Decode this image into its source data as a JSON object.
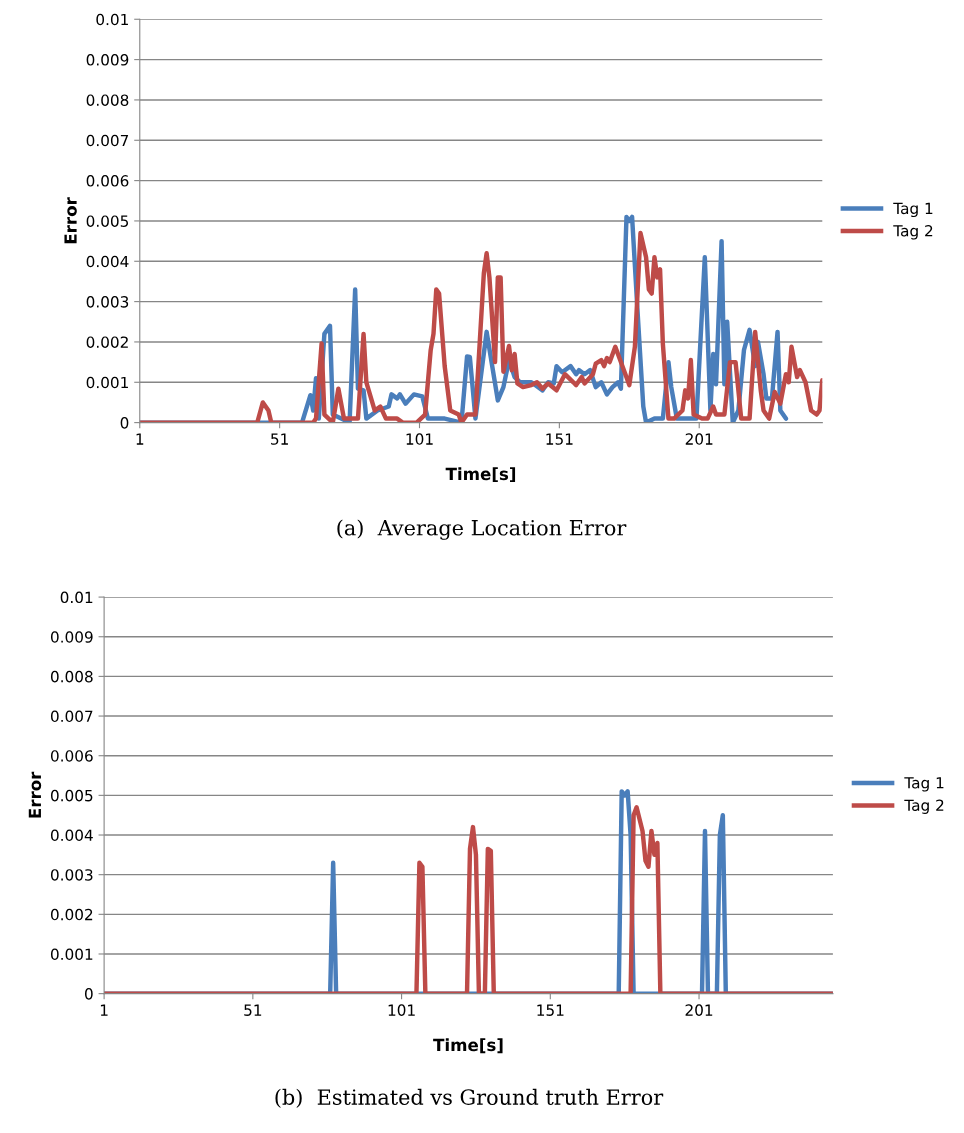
{
  "chart_data": [
    {
      "type": "line",
      "xlabel": "Time[s]",
      "ylabel": "Error",
      "annotations": [
        "(a)  Average Location Error"
      ],
      "xlim": [
        1,
        245
      ],
      "xticks": [
        1,
        51,
        101,
        151,
        201
      ],
      "ylim": [
        0,
        0.01
      ],
      "yticks": [
        0,
        0.001,
        0.002,
        0.003,
        0.004,
        0.005,
        0.006,
        0.007,
        0.008,
        0.009,
        0.01
      ],
      "grid": "y",
      "legend": "right",
      "marker": "none",
      "line_style": "solid",
      "series": [
        {
          "name": "Tag 1",
          "color": "#4a7ebb",
          "x": [
            1,
            59,
            62,
            63,
            64,
            65,
            67,
            69,
            70,
            73,
            76,
            78,
            79,
            81,
            82,
            86,
            90,
            91,
            93,
            94,
            96,
            99,
            102,
            104,
            110,
            116,
            118,
            119,
            121,
            125,
            129,
            131,
            133,
            135,
            137,
            141,
            145,
            147,
            149,
            150,
            152,
            155,
            157,
            158,
            160,
            162,
            164,
            166,
            168,
            170,
            172,
            173,
            175,
            176,
            177,
            179,
            181,
            182,
            185,
            188,
            190,
            191,
            193,
            200,
            203,
            205,
            206,
            207,
            209,
            210,
            211,
            213,
            215,
            217,
            219,
            221,
            222,
            224,
            225,
            227,
            229,
            230,
            232
          ],
          "values": [
            0,
            0,
            0.00068,
            0.0003,
            0.0011,
            0.0001,
            0.0022,
            0.0024,
            0.0002,
            0.0001,
            0,
            0.0033,
            0.00084,
            0.0008,
            0.0001,
            0.0003,
            0.0004,
            0.0007,
            0.0006,
            0.0007,
            0.00047,
            0.0007,
            0.00065,
            0.0001,
            0.0001,
            0,
            0.00164,
            0.00163,
            0.0001,
            0.00225,
            0.00055,
            0.00088,
            0.00155,
            0.00113,
            0.001,
            0.001,
            0.0008,
            0.001,
            0.00097,
            0.0014,
            0.00125,
            0.0014,
            0.0012,
            0.0013,
            0.0012,
            0.0013,
            0.00088,
            0.001,
            0.0007,
            0.00088,
            0.001,
            0.00084,
            0.0051,
            0.005,
            0.0051,
            0.0027,
            0.0004,
            0,
            0.0001,
            0.0001,
            0.0015,
            0.00088,
            0.0001,
            0.0001,
            0.0041,
            0.0003,
            0.0017,
            0.00095,
            0.0045,
            0.00095,
            0.0025,
            0,
            0.0003,
            0.0018,
            0.0023,
            0.0014,
            0.002,
            0.0012,
            0.0006,
            0.0006,
            0.00225,
            0.0003,
            0.0001
          ]
        },
        {
          "name": "Tag 2",
          "color": "#be4b48",
          "x": [
            1,
            43,
            45,
            47,
            48,
            63,
            64,
            66,
            67,
            70,
            72,
            74,
            79,
            81,
            82,
            85,
            87,
            89,
            93,
            95,
            100,
            103,
            105,
            106,
            107,
            108,
            110,
            112,
            115,
            116,
            118,
            121,
            124,
            125,
            126,
            128,
            129,
            130,
            131,
            133,
            134,
            135,
            136,
            138,
            141,
            143,
            145,
            147,
            150,
            153,
            156,
            157,
            159,
            160,
            163,
            164,
            166,
            167,
            168,
            169,
            171,
            173,
            176,
            178,
            180,
            182,
            183,
            184,
            185,
            186,
            187,
            188,
            190,
            192,
            195,
            196,
            197,
            198,
            199,
            202,
            204,
            206,
            207,
            210,
            212,
            214,
            216,
            219,
            221,
            223,
            224,
            226,
            228,
            230,
            232,
            233,
            234,
            236,
            237,
            239,
            241,
            243,
            244,
            245
          ],
          "values": [
            0,
            0,
            0.0005,
            0.0003,
            0,
            0,
            0.0001,
            0.00196,
            0.0002,
            0,
            0.00084,
            0.0001,
            0.0001,
            0.0022,
            0.001,
            0.0003,
            0.0004,
            0.0001,
            0.0001,
            0,
            0,
            0.0002,
            0.0018,
            0.0022,
            0.0033,
            0.0032,
            0.0014,
            0.0003,
            0.0002,
            0,
            0.0002,
            0.0002,
            0.0037,
            0.0042,
            0.0036,
            0.0015,
            0.0036,
            0.0036,
            0.00126,
            0.0019,
            0.0013,
            0.0017,
            0.00097,
            0.00088,
            0.00093,
            0.001,
            0.00084,
            0.00097,
            0.0008,
            0.0012,
            0.001,
            0.00093,
            0.00113,
            0.00097,
            0.0012,
            0.00146,
            0.00155,
            0.0014,
            0.0016,
            0.0015,
            0.00188,
            0.0015,
            0.00093,
            0.00188,
            0.0047,
            0.0041,
            0.0033,
            0.0032,
            0.0041,
            0.0036,
            0.0038,
            0.00196,
            0.0001,
            0.0001,
            0.0003,
            0.0008,
            0.0006,
            0.00155,
            0.0002,
            0.0001,
            0.0001,
            0.0004,
            0.0002,
            0.0002,
            0.0015,
            0.0015,
            0.0001,
            0.0001,
            0.00225,
            0.0008,
            0.0003,
            0.0001,
            0.00076,
            0.00047,
            0.0012,
            0.001,
            0.00188,
            0.00113,
            0.0013,
            0.001,
            0.0003,
            0.0002,
            0.0003,
            0.00105
          ]
        }
      ]
    },
    {
      "type": "line",
      "xlabel": "Time[s]",
      "ylabel": "Error",
      "annotations": [
        "(b)  Estimated vs Ground truth Error"
      ],
      "xlim": [
        1,
        246
      ],
      "xticks": [
        1,
        51,
        101,
        151,
        201
      ],
      "ylim": [
        0,
        0.01
      ],
      "yticks": [
        0,
        0.001,
        0.002,
        0.003,
        0.004,
        0.005,
        0.006,
        0.007,
        0.008,
        0.009,
        0.01
      ],
      "grid": "y",
      "legend": "right",
      "marker": "none",
      "line_style": "solid",
      "series": [
        {
          "name": "Tag 1",
          "color": "#4a7ebb",
          "x": [
            1,
            77,
            78,
            79,
            174,
            175,
            176,
            177,
            178,
            179,
            202,
            203,
            204,
            207,
            208,
            209,
            210,
            246
          ],
          "values": [
            0,
            0,
            0.0033,
            0,
            0,
            0.0051,
            0.005,
            0.0051,
            0.004,
            0,
            0,
            0.0041,
            0,
            0,
            0.004,
            0.0045,
            0,
            0
          ]
        },
        {
          "name": "Tag 2",
          "color": "#be4b48",
          "x": [
            1,
            106,
            107,
            108,
            109,
            123,
            124,
            125,
            126,
            127,
            129,
            130,
            131,
            132,
            178,
            179,
            180,
            182,
            183,
            184,
            185,
            186,
            187,
            188,
            246
          ],
          "values": [
            0,
            0,
            0.0033,
            0.0032,
            0,
            0,
            0.00365,
            0.0042,
            0.0035,
            0,
            0,
            0.00365,
            0.0036,
            0,
            0,
            0.0045,
            0.0047,
            0.0041,
            0.00335,
            0.0032,
            0.0041,
            0.0035,
            0.0038,
            0,
            0
          ]
        }
      ]
    }
  ]
}
